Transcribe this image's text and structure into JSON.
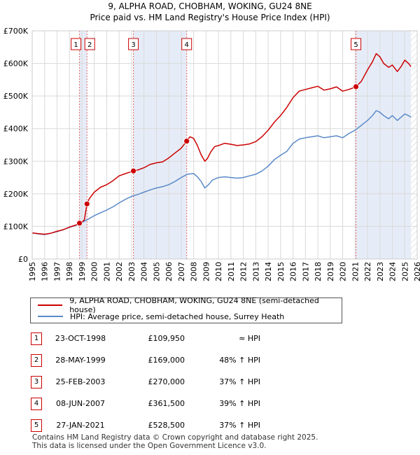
{
  "chart_data": {
    "type": "line",
    "title": "9, ALPHA ROAD, CHOBHAM, WOKING, GU24 8NE",
    "subtitle": "Price paid vs. HM Land Registry's House Price Index (HPI)",
    "xlabel": "",
    "ylabel": "",
    "xlim": [
      1995,
      2026
    ],
    "ylim": [
      0,
      700000
    ],
    "y_ticks": [
      0,
      100000,
      200000,
      300000,
      400000,
      500000,
      600000,
      700000
    ],
    "y_tick_labels": [
      "£0",
      "£100K",
      "£200K",
      "£300K",
      "£400K",
      "£500K",
      "£600K",
      "£700K"
    ],
    "x_ticks": [
      1995,
      1996,
      1997,
      1998,
      1999,
      2000,
      2001,
      2002,
      2003,
      2004,
      2005,
      2006,
      2007,
      2008,
      2009,
      2010,
      2011,
      2012,
      2013,
      2014,
      2015,
      2016,
      2017,
      2018,
      2019,
      2020,
      2021,
      2022,
      2023,
      2024,
      2025,
      2026
    ],
    "x_tick_labels": [
      "1995",
      "1996",
      "1997",
      "1998",
      "1999",
      "2000",
      "2001",
      "2002",
      "2003",
      "2004",
      "2005",
      "2006",
      "2007",
      "2008",
      "2009",
      "2010",
      "2011",
      "2012",
      "2013",
      "2014",
      "2015",
      "2016",
      "2017",
      "2018",
      "2019",
      "2020",
      "2021",
      "2022",
      "2023",
      "2024",
      "2025",
      "2026"
    ],
    "grid": true,
    "shaded_ranges": [
      [
        1998.81,
        1999.41
      ],
      [
        2003.15,
        2007.44
      ],
      [
        2021.07,
        2025.5
      ]
    ],
    "hatched_from": 2025.5,
    "series": [
      {
        "name": "9, ALPHA ROAD, CHOBHAM, WOKING, GU24 8NE (semi-detached house)",
        "color": "#cc0000",
        "x": [
          1995.0,
          1995.5,
          1996.0,
          1996.5,
          1997.0,
          1997.5,
          1998.0,
          1998.5,
          1998.81,
          1999.0,
          1999.2,
          1999.41,
          1999.6,
          2000.0,
          2000.5,
          2001.0,
          2001.5,
          2002.0,
          2002.5,
          2003.0,
          2003.15,
          2003.5,
          2004.0,
          2004.5,
          2005.0,
          2005.5,
          2006.0,
          2006.5,
          2007.0,
          2007.44,
          2007.7,
          2008.0,
          2008.3,
          2008.6,
          2008.9,
          2009.1,
          2009.4,
          2009.7,
          2010.0,
          2010.5,
          2011.0,
          2011.5,
          2012.0,
          2012.5,
          2013.0,
          2013.5,
          2014.0,
          2014.5,
          2015.0,
          2015.5,
          2016.0,
          2016.5,
          2017.0,
          2017.5,
          2018.0,
          2018.5,
          2019.0,
          2019.5,
          2020.0,
          2020.5,
          2021.07,
          2021.5,
          2022.0,
          2022.4,
          2022.7,
          2023.0,
          2023.3,
          2023.7,
          2024.0,
          2024.4,
          2024.7,
          2025.0,
          2025.3,
          2025.5
        ],
        "values": [
          80000,
          78000,
          76000,
          79000,
          85000,
          90000,
          98000,
          104000,
          109950,
          113000,
          120000,
          169000,
          185000,
          205000,
          220000,
          228000,
          240000,
          255000,
          262000,
          268000,
          270000,
          273000,
          280000,
          290000,
          295000,
          298000,
          310000,
          325000,
          340000,
          361500,
          375000,
          370000,
          348000,
          320000,
          300000,
          308000,
          330000,
          345000,
          348000,
          355000,
          352000,
          348000,
          350000,
          353000,
          360000,
          375000,
          395000,
          420000,
          440000,
          465000,
          495000,
          515000,
          520000,
          525000,
          530000,
          518000,
          522000,
          528000,
          515000,
          520000,
          528500,
          545000,
          580000,
          605000,
          630000,
          620000,
          600000,
          588000,
          595000,
          575000,
          590000,
          610000,
          600000,
          590000
        ]
      },
      {
        "name": "HPI: Average price, semi-detached house, Surrey Heath",
        "color": "#5b8ac9",
        "x": [
          1995.0,
          1995.5,
          1996.0,
          1996.5,
          1997.0,
          1997.5,
          1998.0,
          1998.5,
          1999.0,
          1999.5,
          2000.0,
          2000.5,
          2001.0,
          2001.5,
          2002.0,
          2002.5,
          2003.0,
          2003.5,
          2004.0,
          2004.5,
          2005.0,
          2005.5,
          2006.0,
          2006.5,
          2007.0,
          2007.5,
          2008.0,
          2008.3,
          2008.6,
          2008.9,
          2009.2,
          2009.5,
          2010.0,
          2010.5,
          2011.0,
          2011.5,
          2012.0,
          2012.5,
          2013.0,
          2013.5,
          2014.0,
          2014.5,
          2015.0,
          2015.5,
          2016.0,
          2016.5,
          2017.0,
          2017.5,
          2018.0,
          2018.5,
          2019.0,
          2019.5,
          2020.0,
          2020.5,
          2021.0,
          2021.5,
          2022.0,
          2022.4,
          2022.7,
          2023.0,
          2023.3,
          2023.7,
          2024.0,
          2024.4,
          2024.7,
          2025.0,
          2025.3,
          2025.5
        ],
        "values": [
          80000,
          77000,
          75000,
          79000,
          84000,
          90000,
          97000,
          103000,
          112000,
          122000,
          133000,
          142000,
          150000,
          160000,
          172000,
          183000,
          192000,
          198000,
          205000,
          212000,
          218000,
          222000,
          228000,
          238000,
          250000,
          260000,
          262000,
          252000,
          238000,
          218000,
          228000,
          242000,
          250000,
          252000,
          250000,
          248000,
          250000,
          255000,
          260000,
          270000,
          285000,
          305000,
          318000,
          330000,
          355000,
          368000,
          372000,
          375000,
          378000,
          372000,
          375000,
          378000,
          372000,
          385000,
          395000,
          410000,
          425000,
          440000,
          455000,
          450000,
          440000,
          430000,
          440000,
          425000,
          435000,
          445000,
          440000,
          435000
        ]
      }
    ],
    "sales": [
      {
        "n": "1",
        "x": 1998.81,
        "y": 109950
      },
      {
        "n": "2",
        "x": 1999.41,
        "y": 169000
      },
      {
        "n": "3",
        "x": 2003.15,
        "y": 270000
      },
      {
        "n": "4",
        "x": 2007.44,
        "y": 361500
      },
      {
        "n": "5",
        "x": 2021.07,
        "y": 528500
      }
    ]
  },
  "legend": {
    "property_label": "9, ALPHA ROAD, CHOBHAM, WOKING, GU24 8NE (semi-detached house)",
    "hpi_label": "HPI: Average price, semi-detached house, Surrey Heath",
    "property_color": "#cc0000",
    "hpi_color": "#5b8ac9"
  },
  "sales_table": [
    {
      "n": "1",
      "date": "23-OCT-1998",
      "price": "£109,950",
      "hpi": "≈ HPI"
    },
    {
      "n": "2",
      "date": "28-MAY-1999",
      "price": "£169,000",
      "hpi": "48% ↑ HPI"
    },
    {
      "n": "3",
      "date": "25-FEB-2003",
      "price": "£270,000",
      "hpi": "37% ↑ HPI"
    },
    {
      "n": "4",
      "date": "08-JUN-2007",
      "price": "£361,500",
      "hpi": "39% ↑ HPI"
    },
    {
      "n": "5",
      "date": "27-JAN-2021",
      "price": "£528,500",
      "hpi": "37% ↑ HPI"
    }
  ],
  "footer": {
    "line1": "Contains HM Land Registry data © Crown copyright and database right 2025.",
    "line2": "This data is licensed under the Open Government Licence v3.0."
  }
}
